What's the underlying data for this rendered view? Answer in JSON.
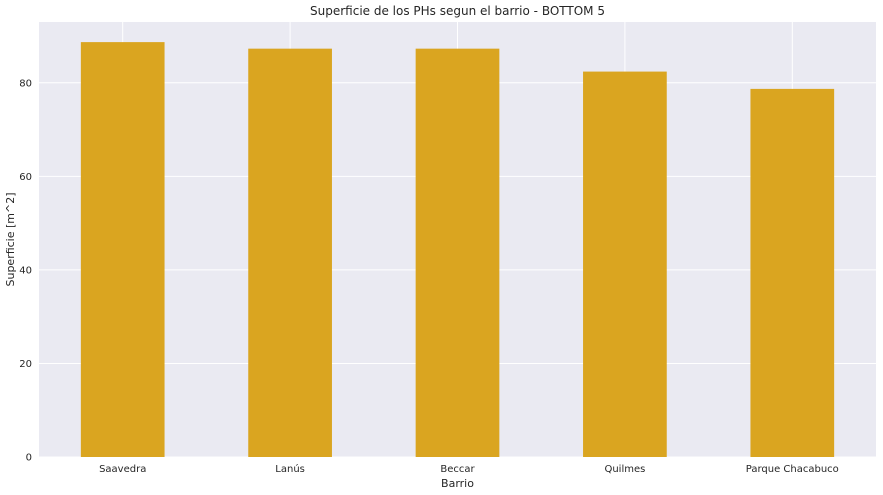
{
  "chart_data": {
    "type": "bar",
    "title": "Superficie de los PHs segun el barrio - BOTTOM 5",
    "xlabel": "Barrio",
    "ylabel": "Superficie [m^2]",
    "categories": [
      "Saavedra",
      "Lanús",
      "Beccar",
      "Quilmes",
      "Parque Chacabuco"
    ],
    "values": [
      88.7,
      87.3,
      87.3,
      82.4,
      78.7
    ],
    "ylim": [
      0,
      93
    ],
    "yticks": [
      0,
      20,
      40,
      60,
      80
    ],
    "grid": true,
    "bar_color": "#DAA520",
    "background_color": "#EAEAF2",
    "grid_color": "#FFFFFF"
  }
}
